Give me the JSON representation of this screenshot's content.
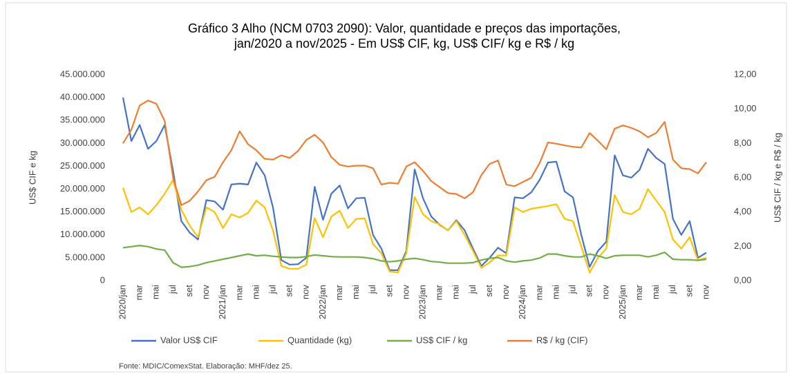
{
  "chart_data": {
    "type": "line",
    "title": [
      "Gráfico 3    Alho (NCM 0703 2090): Valor, quantidade e preços das importações,",
      "jan/2020 a nov/2025 - Em US$ CIF, kg, US$ CIF/ kg e R$ / kg"
    ],
    "y_label": "US$ CIF e kg",
    "y2_label": "US$ CIF / kg e R$ / kg",
    "source": "Fonte: MDIC/ComexStat.  Elaboração: MHF/dez 25.",
    "categories": [
      "2020/jan",
      null,
      "mar",
      null,
      "mai",
      null,
      "jul",
      null,
      "set",
      null,
      "nov",
      null,
      "2021/jan",
      null,
      "mar",
      null,
      "mai",
      null,
      "jul",
      null,
      "set",
      null,
      "nov",
      null,
      "2022/jan",
      null,
      "mar",
      null,
      "mai",
      null,
      "jul",
      null,
      "set",
      null,
      "nov",
      null,
      "2023/jan",
      null,
      "mar",
      null,
      "mai",
      null,
      "jul",
      null,
      "set",
      null,
      "nov",
      null,
      "2024/jan",
      null,
      "mar",
      null,
      "mai",
      null,
      "jul",
      null,
      "set",
      null,
      "nov",
      null,
      "2025/jan",
      null,
      "mar",
      null,
      "mai",
      null,
      "jul",
      null,
      "set",
      null,
      "nov"
    ],
    "ylim": [
      0,
      45000000
    ],
    "yticks": [
      {
        "value": 0,
        "label": "0"
      },
      {
        "value": 5000000,
        "label": "5.000.000"
      },
      {
        "value": 10000000,
        "label": "10.000.000"
      },
      {
        "value": 15000000,
        "label": "15.000.000"
      },
      {
        "value": 20000000,
        "label": "20.000.000"
      },
      {
        "value": 25000000,
        "label": "25.000.000"
      },
      {
        "value": 30000000,
        "label": "30.000.000"
      },
      {
        "value": 35000000,
        "label": "35.000.000"
      },
      {
        "value": 40000000,
        "label": "40.000.000"
      },
      {
        "value": 45000000,
        "label": "45.000.000"
      }
    ],
    "y2lim": [
      0,
      12
    ],
    "y2ticks": [
      {
        "value": 0,
        "label": "0,00"
      },
      {
        "value": 2,
        "label": "2,00"
      },
      {
        "value": 4,
        "label": "4,00"
      },
      {
        "value": 6,
        "label": "6,00"
      },
      {
        "value": 8,
        "label": "8,00"
      },
      {
        "value": 10,
        "label": "10,00"
      },
      {
        "value": 12,
        "label": "12,00"
      }
    ],
    "legend": "bottom",
    "series": [
      {
        "name": "Valor US$ CIF",
        "color": "#4472c4",
        "values": [
          40000000,
          30500000,
          34000000,
          28800000,
          30500000,
          34000000,
          24000000,
          13000000,
          10500000,
          9000000,
          17600000,
          17300000,
          15500000,
          21000000,
          21200000,
          21000000,
          25800000,
          23000000,
          16000000,
          4500000,
          3500000,
          3600000,
          5000000,
          20500000,
          13300000,
          19000000,
          20800000,
          15800000,
          18000000,
          18100000,
          10000000,
          7000000,
          2300000,
          2300000,
          6500000,
          24300000,
          18000000,
          14000000,
          12200000,
          11000000,
          13200000,
          11000000,
          7000000,
          3200000,
          5000000,
          7200000,
          6000000,
          18200000,
          18000000,
          19300000,
          22000000,
          25800000,
          26000000,
          19500000,
          18200000,
          10000000,
          3000000,
          6500000,
          8500000,
          27400000,
          23000000,
          22500000,
          24200000,
          28800000,
          26800000,
          25500000,
          13500000,
          10000000,
          13000000,
          5000000,
          6100000
        ]
      },
      {
        "name": "Quantidade (kg)",
        "color": "#ffc000",
        "values": [
          20300000,
          15000000,
          16000000,
          14500000,
          16500000,
          19000000,
          22000000,
          15500000,
          12000000,
          9500000,
          16000000,
          15000000,
          11500000,
          14500000,
          13800000,
          14800000,
          17500000,
          16000000,
          11000000,
          3200000,
          2600000,
          2600000,
          3500000,
          13700000,
          9500000,
          14000000,
          15300000,
          11500000,
          13500000,
          13600000,
          8000000,
          6000000,
          2000000,
          1800000,
          6000000,
          18300000,
          14500000,
          13000000,
          12300000,
          11000000,
          13000000,
          10000000,
          6500000,
          2800000,
          4000000,
          5500000,
          5500000,
          16000000,
          15000000,
          15700000,
          16000000,
          16300000,
          16700000,
          13500000,
          13000000,
          7500000,
          1800000,
          5000000,
          7000000,
          18700000,
          15000000,
          14500000,
          15700000,
          20000000,
          17500000,
          15000000,
          9000000,
          7000000,
          9500000,
          4500000,
          5000000
        ]
      },
      {
        "name": "US$ CIF / kg",
        "color": "#70ad47",
        "axis": "y2",
        "values": [
          1.92,
          1.98,
          2.05,
          1.98,
          1.85,
          1.78,
          1.05,
          0.78,
          0.82,
          0.9,
          1.05,
          1.15,
          1.25,
          1.35,
          1.45,
          1.55,
          1.45,
          1.48,
          1.42,
          1.38,
          1.35,
          1.35,
          1.4,
          1.5,
          1.45,
          1.4,
          1.38,
          1.38,
          1.38,
          1.35,
          1.28,
          1.15,
          1.1,
          1.15,
          1.25,
          1.3,
          1.22,
          1.12,
          1.08,
          1.02,
          1.02,
          1.02,
          1.05,
          1.2,
          1.3,
          1.35,
          1.15,
          1.08,
          1.15,
          1.2,
          1.32,
          1.55,
          1.55,
          1.45,
          1.38,
          1.38,
          1.55,
          1.45,
          1.3,
          1.45,
          1.48,
          1.48,
          1.48,
          1.38,
          1.48,
          1.65,
          1.25,
          1.22,
          1.22,
          1.18,
          1.25
        ]
      },
      {
        "name": "R$ / kg (CIF)",
        "color": "#ed7d31",
        "axis": "y2",
        "values": [
          8.0,
          8.8,
          10.2,
          10.5,
          10.3,
          9.3,
          6.0,
          4.4,
          4.65,
          5.2,
          5.85,
          6.05,
          6.9,
          7.6,
          8.7,
          7.95,
          7.6,
          7.1,
          7.05,
          7.3,
          7.15,
          7.55,
          8.2,
          8.5,
          8.05,
          7.2,
          6.75,
          6.65,
          6.7,
          6.7,
          6.55,
          5.6,
          5.7,
          5.65,
          6.65,
          6.9,
          6.4,
          5.8,
          5.45,
          5.1,
          5.05,
          4.8,
          5.15,
          6.15,
          6.8,
          7.0,
          5.6,
          5.5,
          5.75,
          6.0,
          6.85,
          8.05,
          7.98,
          7.88,
          7.8,
          7.75,
          8.6,
          8.15,
          7.65,
          8.85,
          9.05,
          8.9,
          8.7,
          8.35,
          8.6,
          9.25,
          7.05,
          6.55,
          6.5,
          6.25,
          6.9
        ]
      }
    ]
  }
}
